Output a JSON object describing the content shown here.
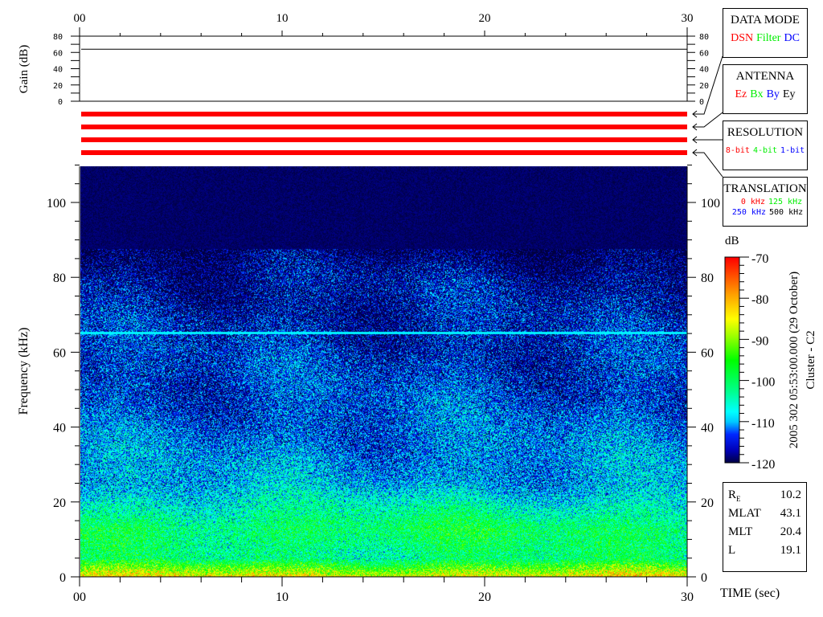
{
  "chart_data": [
    {
      "type": "line",
      "ylabel": "Gain (dB)",
      "ylim": [
        0,
        80
      ],
      "yticks": [
        "80",
        "60",
        "40",
        "20",
        "0"
      ],
      "xlim": [
        0,
        30
      ],
      "xticks": [
        "00",
        "10",
        "20",
        "30"
      ],
      "series": [
        {
          "x": [
            0,
            30
          ],
          "y": [
            64,
            64
          ]
        }
      ]
    },
    {
      "type": "heatmap",
      "xlabel": "TIME (sec)",
      "ylabel": "Frequency (kHz)",
      "xlim": [
        0,
        30
      ],
      "ylim": [
        0,
        110
      ],
      "xticks": [
        "00",
        "10",
        "20",
        "30"
      ],
      "yticks": [
        "0",
        "20",
        "40",
        "60",
        "80",
        "100"
      ],
      "colorbar": {
        "label": "dB",
        "range": [
          -120,
          -70
        ],
        "ticks": [
          "-70",
          "-80",
          "-90",
          "-100",
          "-110",
          "-120"
        ]
      },
      "features": [
        {
          "kind": "continuous line",
          "frequency_khz": 65.4,
          "level_db": -108
        },
        {
          "kind": "band",
          "frequency_khz": [
            8,
            20
          ],
          "level_db": -98
        },
        {
          "kind": "band",
          "frequency_khz": [
            0,
            2
          ],
          "level_db": -82
        }
      ],
      "background_levels_db": [
        {
          "frequency_khz": 0,
          "db": -82
        },
        {
          "frequency_khz": 5,
          "db": -100
        },
        {
          "frequency_khz": 13,
          "db": -98
        },
        {
          "frequency_khz": 25,
          "db": -108
        },
        {
          "frequency_khz": 45,
          "db": -112
        },
        {
          "frequency_khz": 80,
          "db": -116
        },
        {
          "frequency_khz": 90,
          "db": -120
        },
        {
          "frequency_khz": 110,
          "db": -120
        }
      ]
    }
  ],
  "panels": {
    "data_mode": {
      "title": "DATA MODE",
      "values": [
        {
          "t": "DSN",
          "c": "#ff0000"
        },
        {
          "t": "Filter",
          "c": "#00ee00"
        },
        {
          "t": "DC",
          "c": "#0000ff"
        }
      ]
    },
    "antenna": {
      "title": "ANTENNA",
      "values": [
        {
          "t": "Ez",
          "c": "#ff0000"
        },
        {
          "t": "Bx",
          "c": "#00ee00"
        },
        {
          "t": "By",
          "c": "#0000ff"
        },
        {
          "t": "Ey",
          "c": "#000000"
        }
      ]
    },
    "resolution": {
      "title": "RESOLUTION",
      "values": [
        {
          "t": "8-bit",
          "c": "#ff0000"
        },
        {
          "t": "4-bit",
          "c": "#00ee00"
        },
        {
          "t": "1-bit",
          "c": "#0000ff"
        }
      ]
    },
    "translation": {
      "title": "TRANSLATION",
      "values": [
        {
          "t": "0 kHz",
          "c": "#ff0000"
        },
        {
          "t": "125 kHz",
          "c": "#00ee00"
        },
        {
          "t": "250 kHz",
          "c": "#0000ff"
        },
        {
          "t": "500 kHz",
          "c": "#000000"
        }
      ]
    },
    "status_bar_color": "#ff0000"
  },
  "title_vertical": "2005 302 05:53:00.000 (29 October)",
  "spacecraft": "Cluster - C2",
  "position": [
    {
      "label": "R",
      "sub": "E",
      "value": "10.2"
    },
    {
      "label": "MLAT",
      "value": "43.1"
    },
    {
      "label": "MLT",
      "value": "20.4"
    },
    {
      "label": "L",
      "value": "19.1"
    }
  ]
}
